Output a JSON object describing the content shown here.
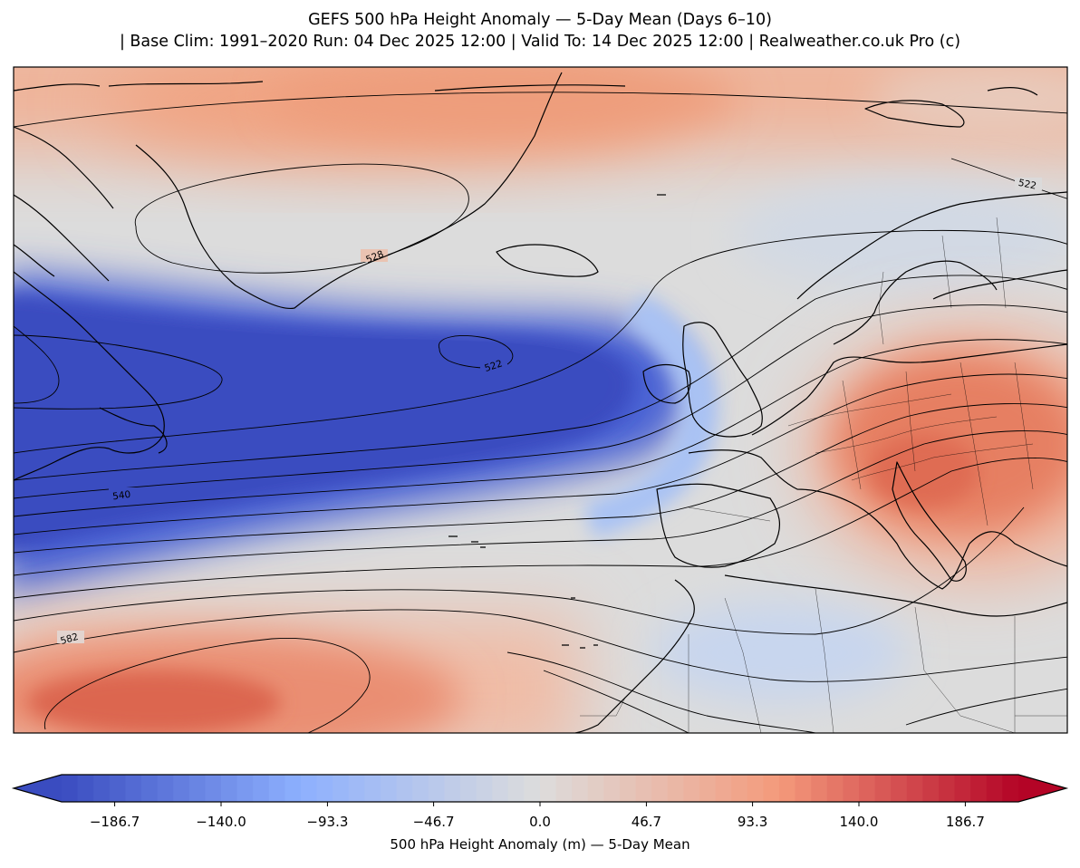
{
  "title": {
    "line1": "GEFS 500 hPa Height Anomaly — 5-Day Mean (Days 6–10)",
    "line2": "| Base Clim: 1991–2020 Run: 04 Dec 2025 12:00 | Valid To: 14 Dec 2025 12:00 | Realweather.co.uk Pro (c)"
  },
  "map": {
    "region": "North Atlantic and Europe",
    "anomaly_colormap": "coolwarm",
    "negative_anomaly_color": "#3a4cc0",
    "neutral_color": "#dddcdc",
    "positive_anomaly_color": "#b40426",
    "contour_color": "#000000",
    "contour_labels": [
      "522",
      "528",
      "522",
      "540",
      "582"
    ],
    "features": {
      "strong_negative_anomaly": "Central North Atlantic to Newfoundland",
      "positive_anomaly_north": "Greenland and Arctic",
      "positive_anomaly_east": "Central Europe and Balkans",
      "positive_anomaly_south": "Subtropical Atlantic"
    }
  },
  "colorbar": {
    "min": -210,
    "max": 210,
    "extend": "both",
    "tick_labels": [
      "−186.7",
      "−140.0",
      "−93.3",
      "−46.7",
      "0.0",
      "46.7",
      "93.3",
      "140.0",
      "186.7"
    ],
    "tick_values": [
      -186.7,
      -140.0,
      -93.3,
      -46.7,
      0.0,
      46.7,
      93.3,
      140.0,
      186.7
    ],
    "label": "500 hPa Height Anomaly (m) — 5-Day Mean"
  }
}
